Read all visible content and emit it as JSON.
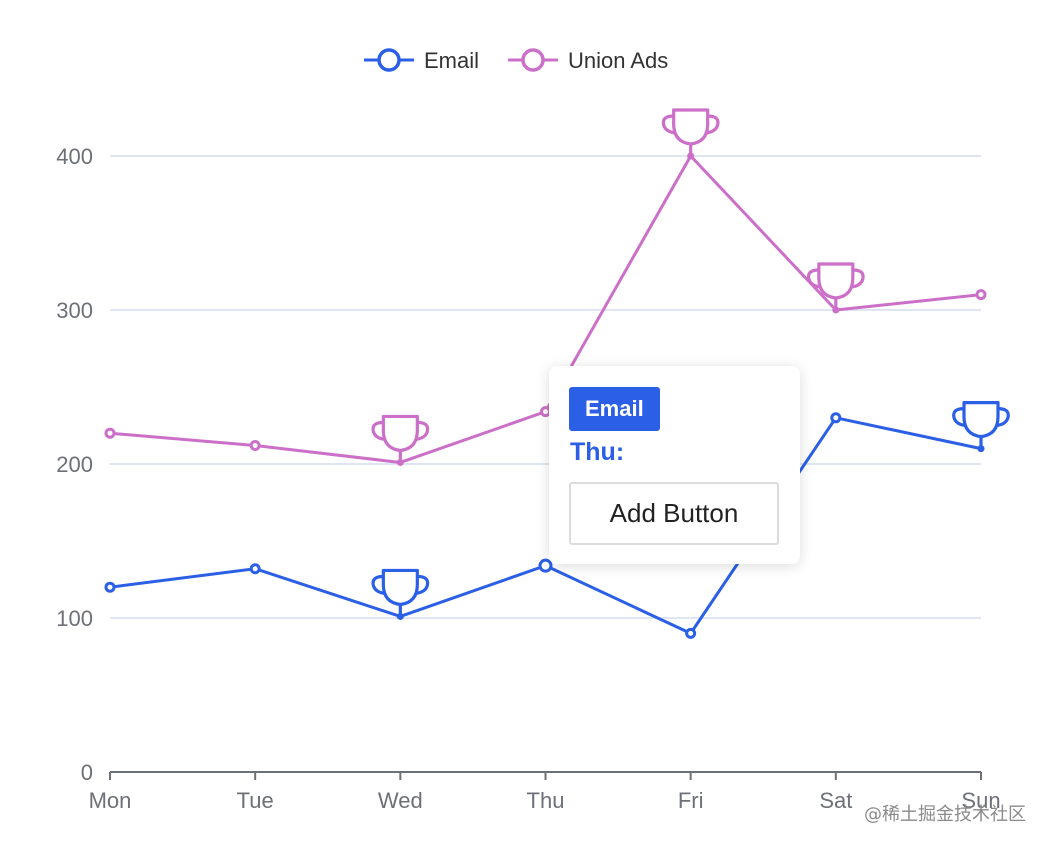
{
  "chart_data": {
    "type": "line",
    "categories": [
      "Mon",
      "Tue",
      "Wed",
      "Thu",
      "Fri",
      "Sat",
      "Sun"
    ],
    "series": [
      {
        "name": "Email",
        "color": "#2a5fe6",
        "values": [
          120,
          132,
          101,
          134,
          90,
          230,
          210
        ],
        "max_markers": [
          2,
          6
        ]
      },
      {
        "name": "Union Ads",
        "color": "#cc6fc8",
        "values": [
          220,
          212,
          201,
          234,
          400,
          300,
          310
        ],
        "max_markers": [
          2,
          4,
          5
        ]
      }
    ],
    "y_ticks": [
      "0",
      "100",
      "200",
      "300",
      "400"
    ],
    "ylim": [
      0,
      400
    ],
    "grid": true,
    "legend_placement": "top-center",
    "marker_icon": "trophy-icon"
  },
  "tooltip": {
    "series_label": "Email",
    "category_label": "Thu:",
    "button_label": "Add Button"
  },
  "watermark": "@稀土掘金技术社区"
}
